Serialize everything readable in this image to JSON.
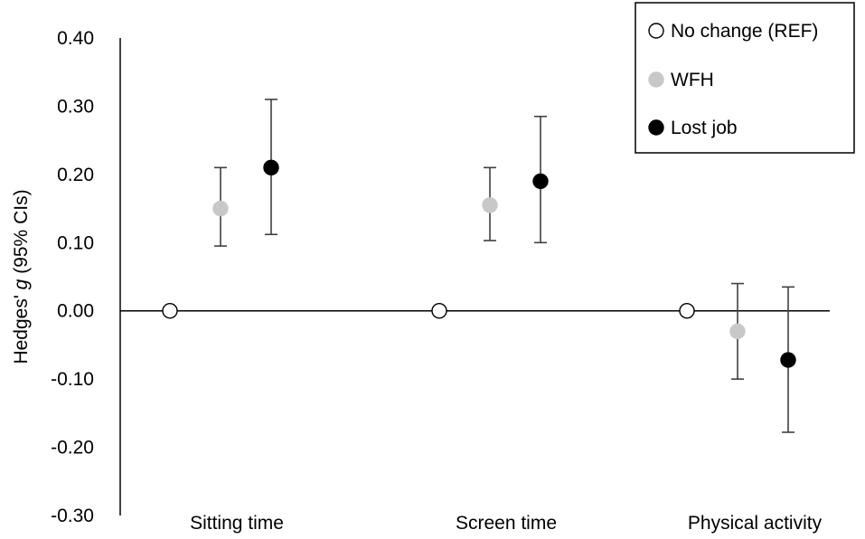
{
  "chart_data": {
    "type": "scatter",
    "subtype": "point-estimate-with-confidence-intervals",
    "title": "",
    "xlabel": "",
    "ylabel": {
      "prefix": "Hedges' ",
      "italic": "g",
      "suffix": " (95% CIs)"
    },
    "ylim": [
      -0.3,
      0.4
    ],
    "yticks": [
      "0.40",
      "0.30",
      "0.20",
      "0.10",
      "0.00",
      "-0.10",
      "-0.20",
      "-0.30"
    ],
    "grid": false,
    "legend_position": "top-right",
    "categories": [
      "Sitting time",
      "Screen time",
      "Physical activity"
    ],
    "series": [
      {
        "name": "No change (REF)",
        "marker": "hollow-circle",
        "color": "#ffffff",
        "edge_color": "#000000",
        "values": [
          0.0,
          0.0,
          0.0
        ],
        "ci_low": [
          null,
          null,
          null
        ],
        "ci_high": [
          null,
          null,
          null
        ]
      },
      {
        "name": "WFH",
        "marker": "circle",
        "color": "#c8c8c8",
        "edge_color": "#c8c8c8",
        "values": [
          0.15,
          0.155,
          -0.03
        ],
        "ci_low": [
          0.095,
          0.103,
          -0.1
        ],
        "ci_high": [
          0.21,
          0.21,
          0.04
        ]
      },
      {
        "name": "Lost job",
        "marker": "circle",
        "color": "#000000",
        "edge_color": "#000000",
        "values": [
          0.21,
          0.19,
          -0.072
        ],
        "ci_low": [
          0.112,
          0.1,
          -0.178
        ],
        "ci_high": [
          0.31,
          0.285,
          0.035
        ]
      }
    ]
  }
}
